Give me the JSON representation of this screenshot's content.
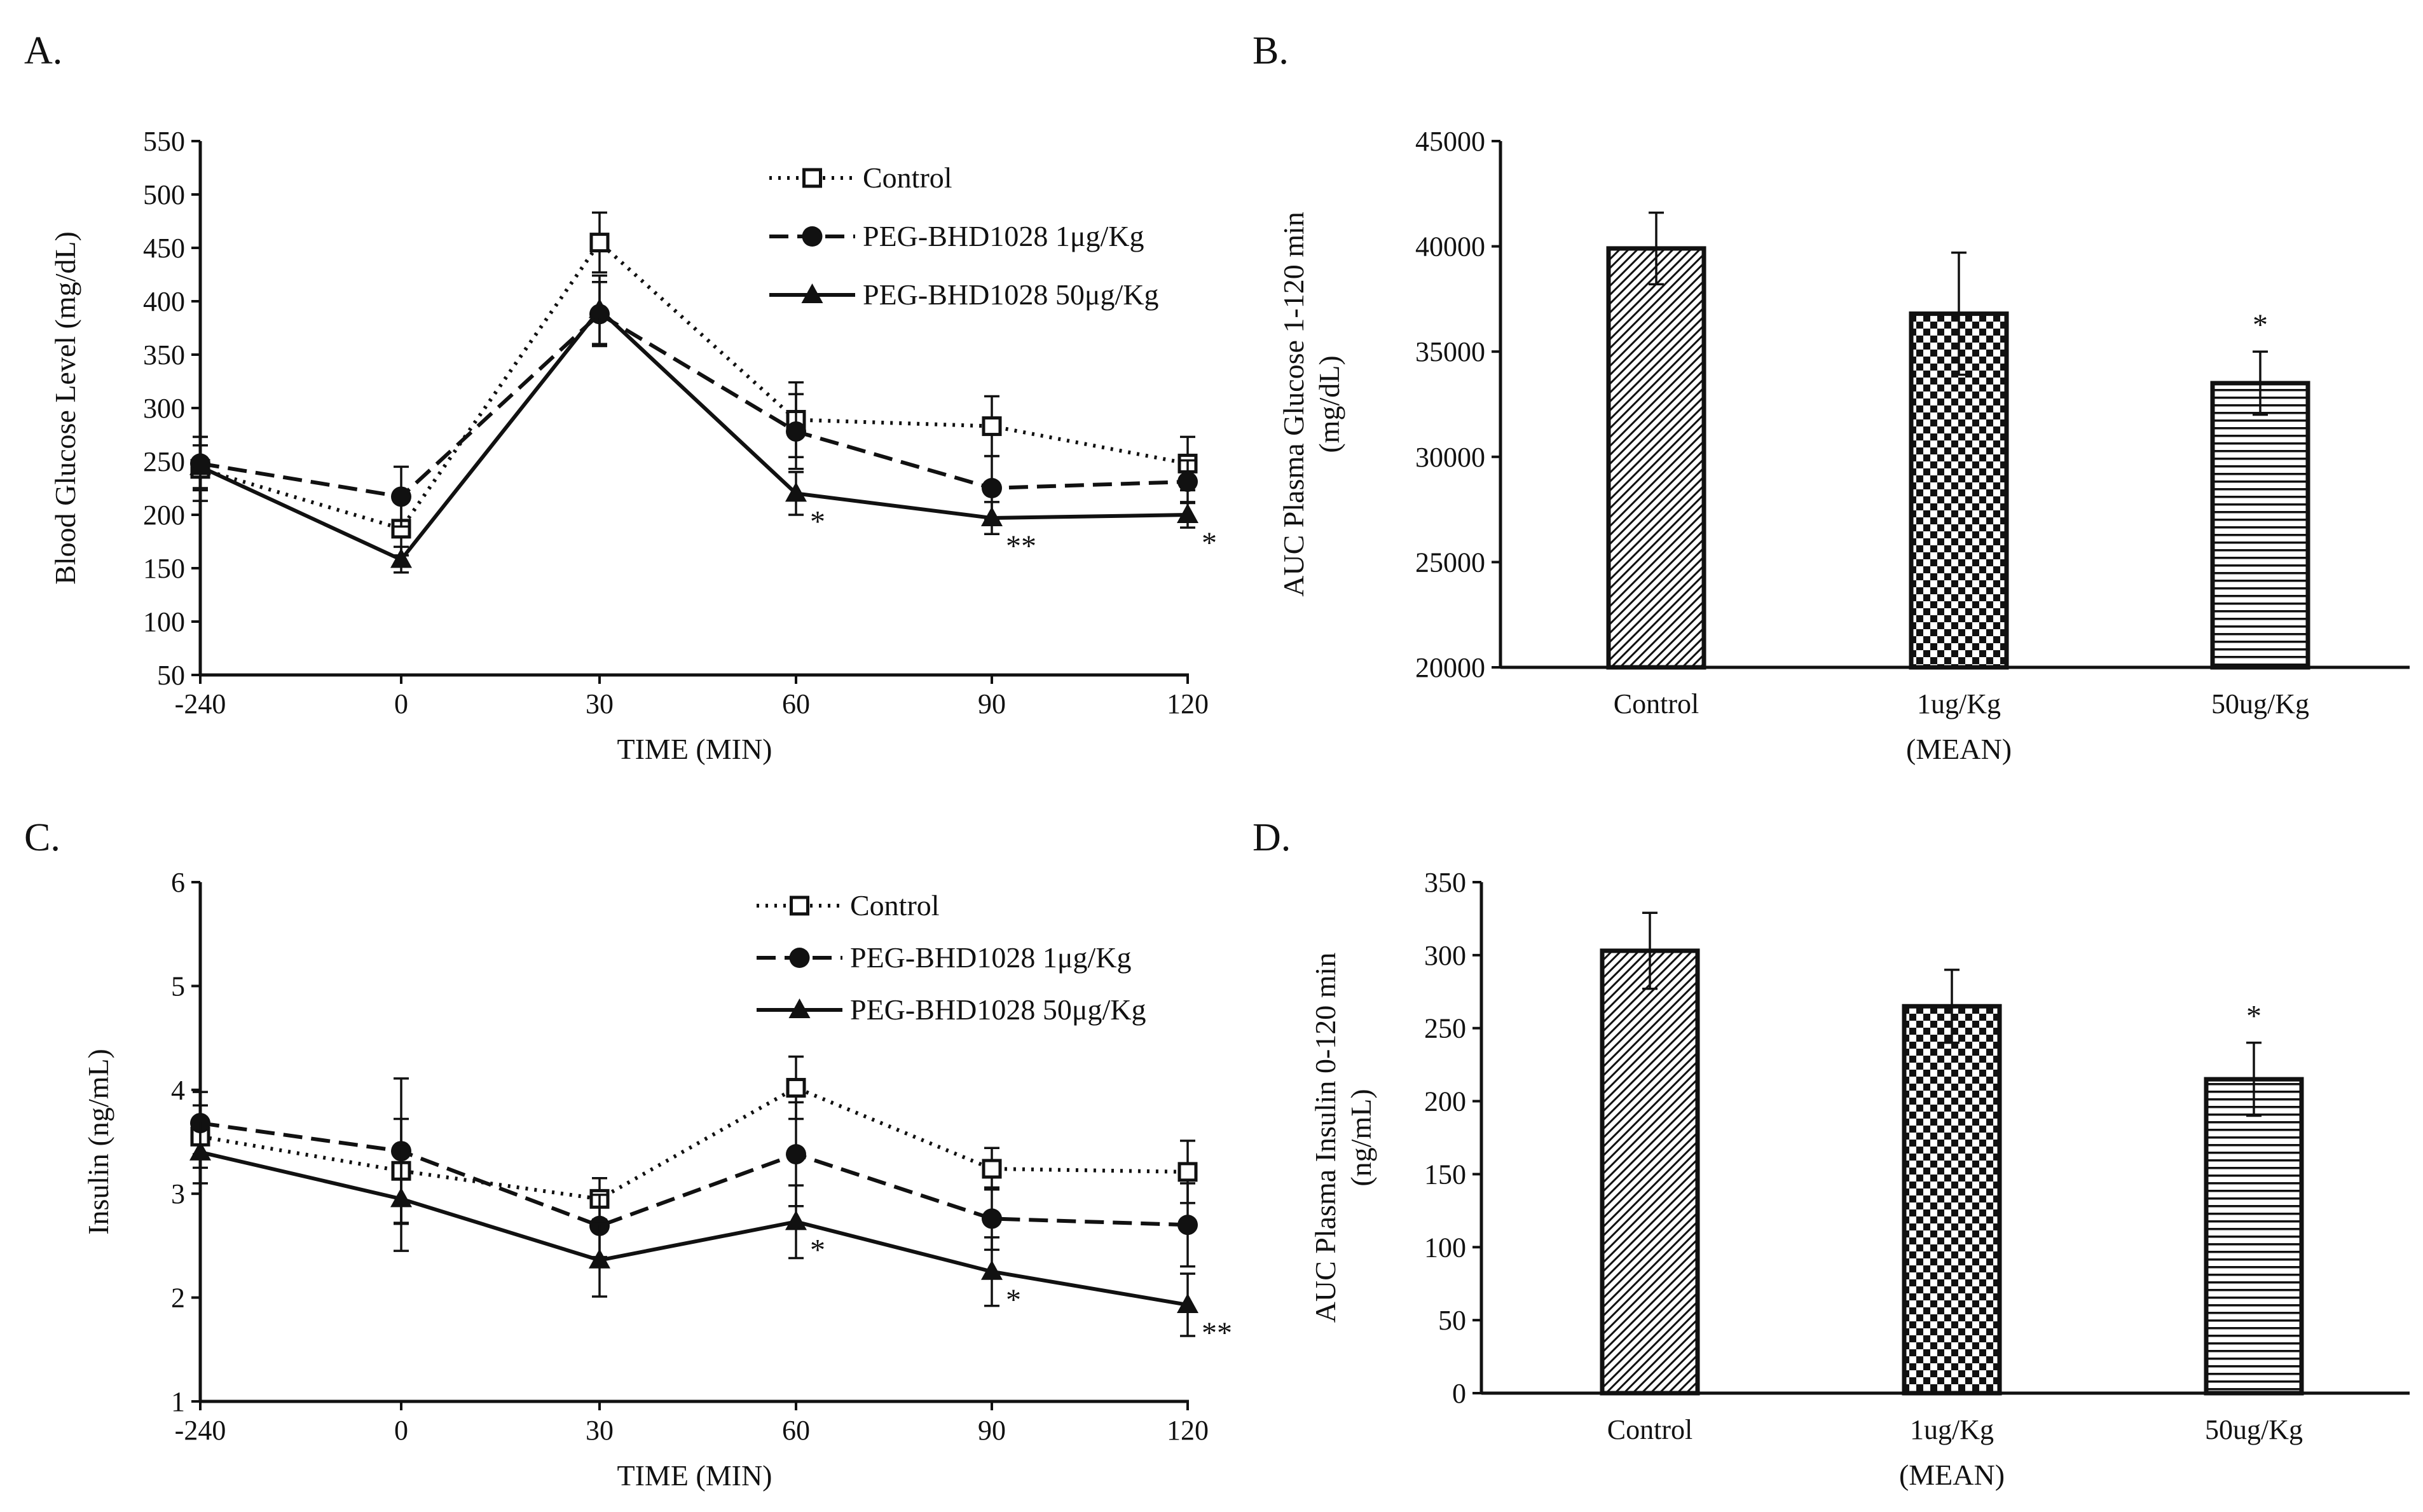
{
  "chart_data": [
    {
      "panel": "A.",
      "type": "line",
      "x_categories": [
        "-240",
        "0",
        "30",
        "60",
        "90",
        "120"
      ],
      "xlabel": "TIME (MIN)",
      "ylabel": "Blood Glucose Level (mg/dL)",
      "ylim": [
        50,
        550
      ],
      "yticks": [
        50,
        100,
        150,
        200,
        250,
        300,
        350,
        400,
        450,
        500,
        550
      ],
      "legend_position": "top-right",
      "series": [
        {
          "name": "Control",
          "style": "dotted",
          "marker": "open-square",
          "values": [
            243,
            187,
            455,
            289,
            283,
            248
          ],
          "errors": [
            30,
            25,
            28,
            35,
            28,
            25
          ]
        },
        {
          "name": "PEG-BHD1028 1μg/Kg",
          "style": "dashed",
          "marker": "filled-circle",
          "values": [
            248,
            217,
            388,
            278,
            225,
            231
          ],
          "errors": [
            25,
            28,
            30,
            35,
            30,
            20
          ]
        },
        {
          "name": "PEG-BHD1028 50μg/Kg",
          "style": "solid",
          "marker": "filled-triangle",
          "values": [
            245,
            158,
            392,
            220,
            197,
            200
          ],
          "errors": [
            20,
            12,
            32,
            20,
            15,
            12
          ]
        }
      ],
      "annotations": [
        {
          "x": "60",
          "text": "*"
        },
        {
          "x": "90",
          "text": "**"
        },
        {
          "x": "120",
          "text": "*"
        }
      ]
    },
    {
      "panel": "B.",
      "type": "bar",
      "categories": [
        "Control",
        "1ug/Kg",
        "50ug/Kg"
      ],
      "values": [
        39900,
        36800,
        33500
      ],
      "errors": [
        1700,
        2900,
        1500
      ],
      "patterns": [
        "diagonal",
        "checker",
        "horizontal"
      ],
      "xlabel": "(MEAN)",
      "ylabel": [
        "AUC Plasma Glucose 1-120 min",
        "(mg/dL)"
      ],
      "ylim": [
        20000,
        45000
      ],
      "yticks": [
        20000,
        25000,
        30000,
        35000,
        40000,
        45000
      ],
      "annotations": [
        {
          "category": "50ug/Kg",
          "text": "*"
        }
      ]
    },
    {
      "panel": "C.",
      "type": "line",
      "x_categories": [
        "-240",
        "0",
        "30",
        "60",
        "90",
        "120"
      ],
      "xlabel": "TIME (MIN)",
      "ylabel": "Insulin (ng/mL)",
      "ylim": [
        1,
        6
      ],
      "yticks": [
        1,
        2,
        3,
        4,
        5,
        6
      ],
      "legend_position": "top-right",
      "series": [
        {
          "name": "Control",
          "style": "dotted",
          "marker": "open-square",
          "values": [
            3.55,
            3.22,
            2.95,
            4.02,
            3.24,
            3.21
          ],
          "errors": [
            0.3,
            0.5,
            0.2,
            0.3,
            0.2,
            0.3
          ]
        },
        {
          "name": "PEG-BHD1028 1μg/Kg",
          "style": "dashed",
          "marker": "filled-circle",
          "values": [
            3.68,
            3.41,
            2.69,
            3.38,
            2.76,
            2.7
          ],
          "errors": [
            0.3,
            0.7,
            0.3,
            0.5,
            0.3,
            0.4
          ]
        },
        {
          "name": "PEG-BHD1028 50μg/Kg",
          "style": "solid",
          "marker": "filled-triangle",
          "values": [
            3.4,
            2.95,
            2.36,
            2.73,
            2.25,
            1.93
          ],
          "errors": [
            0.3,
            0.5,
            0.35,
            0.35,
            0.33,
            0.3
          ]
        }
      ],
      "annotations": [
        {
          "x": "60",
          "text": "*"
        },
        {
          "x": "90",
          "text": "*"
        },
        {
          "x": "120",
          "text": "**"
        }
      ]
    },
    {
      "panel": "D.",
      "type": "bar",
      "categories": [
        "Control",
        "1ug/Kg",
        "50ug/Kg"
      ],
      "values": [
        303,
        265,
        215
      ],
      "errors": [
        26,
        25,
        25
      ],
      "patterns": [
        "diagonal",
        "checker",
        "horizontal"
      ],
      "xlabel": "(MEAN)",
      "ylabel": [
        "AUC Plasma Insulin 0-120 min",
        "(ng/mL)"
      ],
      "ylim": [
        0,
        350
      ],
      "yticks": [
        0,
        50,
        100,
        150,
        200,
        250,
        300,
        350
      ],
      "annotations": [
        {
          "category": "50ug/Kg",
          "text": "*"
        }
      ]
    }
  ]
}
